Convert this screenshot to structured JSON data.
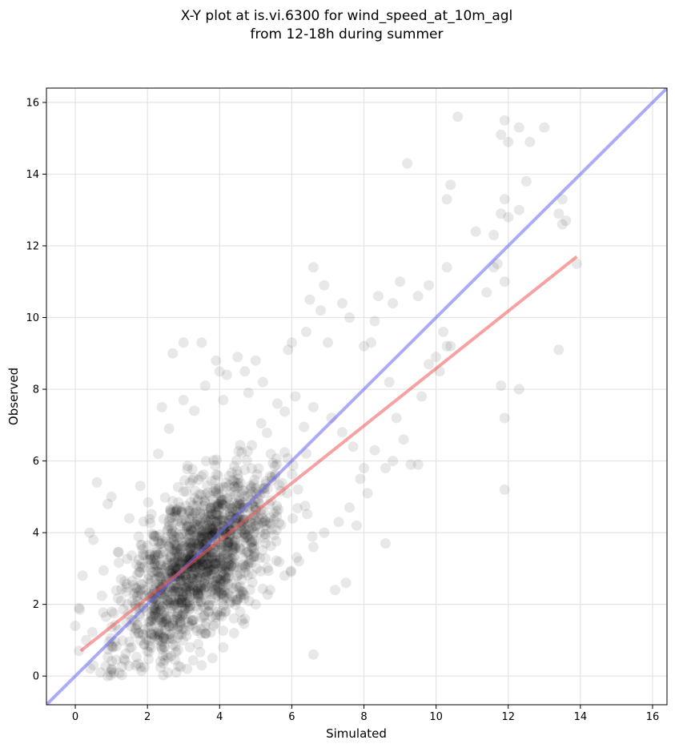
{
  "chart_data": {
    "type": "scatter",
    "title_line1": "X-Y plot at is.vi.6300 for wind_speed_at_10m_agl",
    "title_line2": "from 12-18h during summer",
    "xlabel": "Simulated",
    "ylabel": "Observed",
    "xlim": [
      -0.8,
      16.4
    ],
    "ylim": [
      -0.8,
      16.4
    ],
    "xticks": [
      "0",
      "2",
      "4",
      "6",
      "8",
      "10",
      "12",
      "14",
      "16"
    ],
    "yticks": [
      "0",
      "2",
      "4",
      "6",
      "8",
      "10",
      "12",
      "14",
      "16"
    ],
    "grid": true,
    "points": [
      [
        10.6,
        15.6
      ],
      [
        11.9,
        15.5
      ],
      [
        12.3,
        15.3
      ],
      [
        13.0,
        15.3
      ],
      [
        11.8,
        15.1
      ],
      [
        12.0,
        14.9
      ],
      [
        12.6,
        14.9
      ],
      [
        9.2,
        14.3
      ],
      [
        12.5,
        13.8
      ],
      [
        10.4,
        13.7
      ],
      [
        10.3,
        13.3
      ],
      [
        11.9,
        13.3
      ],
      [
        13.5,
        13.3
      ],
      [
        12.3,
        13.0
      ],
      [
        11.8,
        12.9
      ],
      [
        12.0,
        12.8
      ],
      [
        13.4,
        12.9
      ],
      [
        13.6,
        12.7
      ],
      [
        13.5,
        12.6
      ],
      [
        11.1,
        12.4
      ],
      [
        11.6,
        12.3
      ],
      [
        11.7,
        11.5
      ],
      [
        11.6,
        11.4
      ],
      [
        10.3,
        11.4
      ],
      [
        13.9,
        11.5
      ],
      [
        11.9,
        11.0
      ],
      [
        9.0,
        11.0
      ],
      [
        9.8,
        10.9
      ],
      [
        11.4,
        10.7
      ],
      [
        9.5,
        10.6
      ],
      [
        8.4,
        10.6
      ],
      [
        6.9,
        10.9
      ],
      [
        6.5,
        10.5
      ],
      [
        8.8,
        10.4
      ],
      [
        7.4,
        10.4
      ],
      [
        6.8,
        10.2
      ],
      [
        7.6,
        10.0
      ],
      [
        6.6,
        11.4
      ],
      [
        10.2,
        9.6
      ],
      [
        10.3,
        9.2
      ],
      [
        10.4,
        9.2
      ],
      [
        10.1,
        8.5
      ],
      [
        13.4,
        9.1
      ],
      [
        12.3,
        8.0
      ],
      [
        11.8,
        8.1
      ],
      [
        11.9,
        7.2
      ],
      [
        11.9,
        5.2
      ],
      [
        9.3,
        5.9
      ],
      [
        9.5,
        5.9
      ],
      [
        8.6,
        5.8
      ],
      [
        8.6,
        3.7
      ],
      [
        8.0,
        5.8
      ],
      [
        7.8,
        4.2
      ],
      [
        7.5,
        2.6
      ],
      [
        7.2,
        2.4
      ],
      [
        6.6,
        0.6
      ],
      [
        7.0,
        9.3
      ],
      [
        6.4,
        9.6
      ],
      [
        6.0,
        9.3
      ],
      [
        5.9,
        9.1
      ],
      [
        3.0,
        9.3
      ],
      [
        2.7,
        9.0
      ],
      [
        3.5,
        9.3
      ],
      [
        3.9,
        8.8
      ],
      [
        4.0,
        8.5
      ],
      [
        4.2,
        8.4
      ],
      [
        4.7,
        8.5
      ],
      [
        4.5,
        8.9
      ],
      [
        5.0,
        8.8
      ],
      [
        8.0,
        9.2
      ],
      [
        8.3,
        9.9
      ],
      [
        8.2,
        9.3
      ],
      [
        9.6,
        7.8
      ],
      [
        9.8,
        8.7
      ],
      [
        10.0,
        8.9
      ],
      [
        8.7,
        8.2
      ],
      [
        8.9,
        7.2
      ],
      [
        9.1,
        6.6
      ],
      [
        8.8,
        6.0
      ],
      [
        8.3,
        6.3
      ],
      [
        0.6,
        5.4
      ],
      [
        1.0,
        5.0
      ],
      [
        0.9,
        4.8
      ],
      [
        0.4,
        4.0
      ],
      [
        0.5,
        3.8
      ],
      [
        0.2,
        2.8
      ],
      [
        0.1,
        1.9
      ],
      [
        0.0,
        1.4
      ],
      [
        0.3,
        1.0
      ],
      [
        0.1,
        0.7
      ],
      [
        0.5,
        0.3
      ],
      [
        0.7,
        0.1
      ],
      [
        0.9,
        0.0
      ],
      [
        1.0,
        0.2
      ],
      [
        1.8,
        5.3
      ],
      [
        1.5,
        4.4
      ],
      [
        2.4,
        7.5
      ],
      [
        2.6,
        6.9
      ],
      [
        2.3,
        6.2
      ],
      [
        3.0,
        7.7
      ],
      [
        3.3,
        7.4
      ],
      [
        3.6,
        8.1
      ],
      [
        4.1,
        7.7
      ],
      [
        4.8,
        7.9
      ],
      [
        5.2,
        8.2
      ],
      [
        5.6,
        7.6
      ],
      [
        6.1,
        7.8
      ],
      [
        6.6,
        7.5
      ],
      [
        7.1,
        7.2
      ],
      [
        7.4,
        6.8
      ],
      [
        7.7,
        6.4
      ],
      [
        7.9,
        5.5
      ],
      [
        8.1,
        5.1
      ],
      [
        7.6,
        4.7
      ],
      [
        7.3,
        4.3
      ],
      [
        6.9,
        4.0
      ],
      [
        6.6,
        3.6
      ],
      [
        6.2,
        3.2
      ],
      [
        5.8,
        2.8
      ],
      [
        5.4,
        2.4
      ],
      [
        5.0,
        2.0
      ],
      [
        4.7,
        1.6
      ],
      [
        4.4,
        1.2
      ],
      [
        4.1,
        0.8
      ],
      [
        3.8,
        0.5
      ],
      [
        3.5,
        0.3
      ],
      [
        3.1,
        0.2
      ],
      [
        2.8,
        0.1
      ]
    ],
    "trend_line": {
      "x": [
        0.15,
        13.9
      ],
      "y": [
        0.7,
        11.7
      ],
      "color": "#ee5555"
    },
    "identity_line": {
      "x": [
        -0.8,
        16.4
      ],
      "y": [
        -0.8,
        16.4
      ],
      "color": "#6666ee"
    },
    "point_color": "#000000"
  }
}
